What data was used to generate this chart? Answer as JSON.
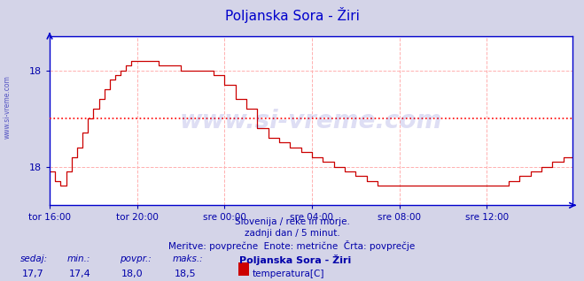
{
  "title": "Poljanska Sora - Žiri",
  "title_color": "#0000cc",
  "bg_color": "#d4d4e8",
  "plot_bg_color": "#ffffff",
  "grid_color": "#ffb0b0",
  "axis_color": "#0000cc",
  "line_color": "#cc0000",
  "avg_line_color": "#ff0000",
  "avg_value": 18.0,
  "ylim_min": 17.1,
  "ylim_max": 18.85,
  "xlabel_color": "#0000aa",
  "watermark_color": "#0000aa",
  "watermark_text": "www.si-vreme.com",
  "subtitle1": "Slovenija / reke in morje.",
  "subtitle2": "zadnji dan / 5 minut.",
  "subtitle3": "Meritve: povprečne  Enote: metrične  Črta: povprečje",
  "footer_labels": [
    "sedaj:",
    "min.:",
    "povpr.:",
    "maks.:"
  ],
  "footer_values": [
    "17,7",
    "17,4",
    "18,0",
    "18,5"
  ],
  "footer_series": "Poljanska Sora - Žiri",
  "footer_legend": "temperatura[C]",
  "legend_color": "#cc0000",
  "xtick_labels": [
    "tor 16:00",
    "tor 20:00",
    "sre 00:00",
    "sre 04:00",
    "sre 08:00",
    "sre 12:00"
  ],
  "num_points": 288,
  "figsize": [
    6.59,
    3.18
  ],
  "dpi": 100,
  "ytick_positions": [
    17.5,
    18.5
  ],
  "ytick_labels": [
    "18",
    "18"
  ],
  "tick_indices": [
    0,
    48,
    96,
    144,
    192,
    240
  ]
}
